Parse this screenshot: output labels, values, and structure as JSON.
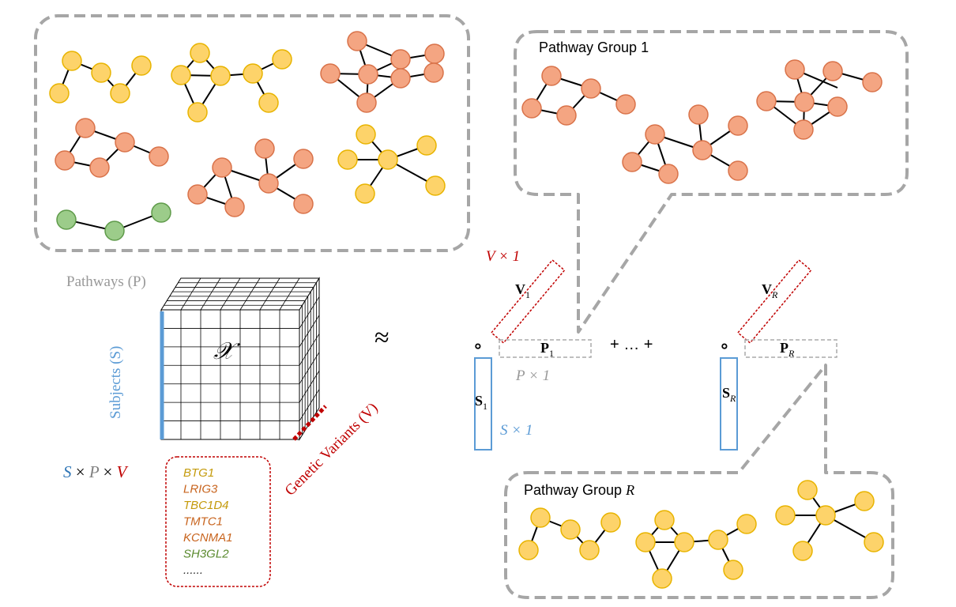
{
  "labels": {
    "pathways": "Pathways (P)",
    "subjects": "Subjects (S)",
    "genetic_variants": "Genetic Variants (V)",
    "tensor_symbol": "𝒳",
    "approx": "≈",
    "dims_s": "S",
    "dims_times1": "×",
    "dims_p": "P",
    "dims_times2": "×",
    "dims_v": "V",
    "v_dim": "V × 1",
    "p_dim": "P × 1",
    "s_dim": "S × 1",
    "v1": "V",
    "v1_sub": "1",
    "vr": "V",
    "vr_sub": "R",
    "p1": "P",
    "p1_sub": "1",
    "pr": "P",
    "pr_sub": "R",
    "s1": "S",
    "s1_sub": "1",
    "sr": "S",
    "sr_sub": "R",
    "plus_dots": "+ … +",
    "outer_op": "∘",
    "group1_title": "Pathway Group 1",
    "groupR_title_prefix": "Pathway Group ",
    "groupR_title_var": "R"
  },
  "genes": [
    {
      "name": "BTG1",
      "color": "#c49a0a"
    },
    {
      "name": "LRIG3",
      "color": "#c8641e"
    },
    {
      "name": "TBC1D4",
      "color": "#c49a0a"
    },
    {
      "name": "TMTC1",
      "color": "#c8641e"
    },
    {
      "name": "KCNMA1",
      "color": "#c8641e"
    },
    {
      "name": "SH3GL2",
      "color": "#5a8a2e"
    },
    {
      "name": "......",
      "color": "#333333"
    }
  ],
  "colors": {
    "yellow_node": "#fdd36a",
    "yellow_stroke": "#e8b400",
    "orange_node": "#f4a582",
    "orange_stroke": "#d9734a",
    "green_node": "#9ccc8a",
    "green_stroke": "#5f9b4a",
    "subjects_blue": "#5b9bd5",
    "variants_red": "#c00000",
    "gray": "#999999"
  }
}
